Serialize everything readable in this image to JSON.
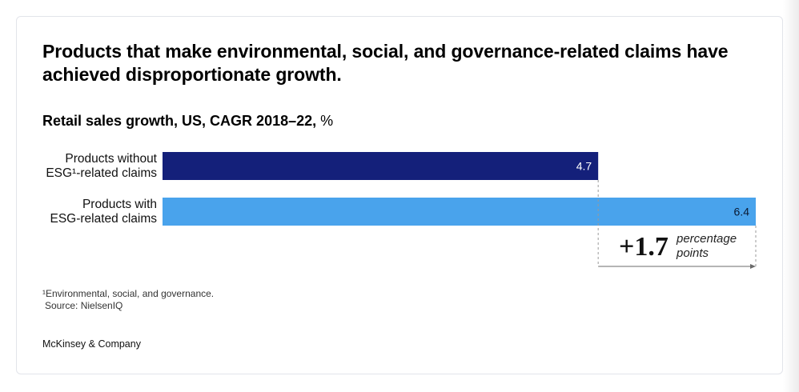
{
  "title": "Products that make environmental, social, and governance-related claims have achieved disproportionate growth.",
  "subtitle": {
    "main": "Retail sales growth, US, CAGR 2018–22,",
    "unit": " %"
  },
  "chart_data": {
    "type": "bar",
    "orientation": "horizontal",
    "categories": [
      [
        "Products without",
        "ESG¹-related claims"
      ],
      [
        "Products with",
        "ESG-related claims"
      ]
    ],
    "values": [
      4.7,
      6.4
    ],
    "value_labels": [
      "4.7",
      "6.4"
    ],
    "xlim": [
      0,
      6.4
    ],
    "colors": [
      "#14207a",
      "#49a3ec"
    ],
    "difference": {
      "value": "+1.7",
      "unit_lines": [
        "percentage",
        "points"
      ]
    }
  },
  "footnote": {
    "note": "¹Environmental, social, and governance.",
    "source": "Source: NielsenIQ"
  },
  "brand": "McKinsey & Company"
}
